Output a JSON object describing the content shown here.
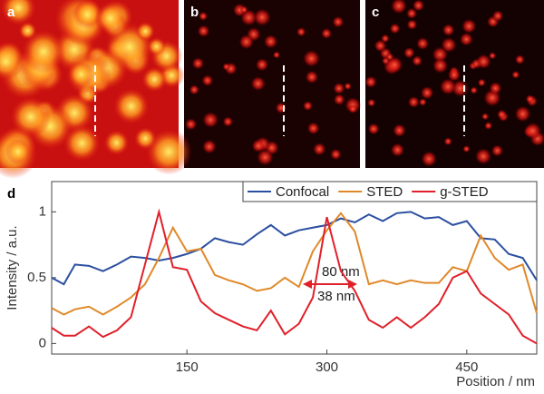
{
  "panels": [
    "a",
    "b",
    "c",
    "d"
  ],
  "chart_data": {
    "type": "line",
    "x": [
      5,
      18,
      30,
      45,
      60,
      75,
      90,
      105,
      120,
      135,
      150,
      165,
      180,
      195,
      210,
      225,
      240,
      255,
      270,
      285,
      300,
      315,
      330,
      345,
      360,
      375,
      390,
      405,
      420,
      435,
      450,
      465,
      480,
      495,
      510,
      525
    ],
    "series": [
      {
        "name": "Confocal",
        "color": "#2b4fa0",
        "values": [
          0.5,
          0.45,
          0.6,
          0.59,
          0.55,
          0.6,
          0.66,
          0.65,
          0.63,
          0.65,
          0.68,
          0.72,
          0.8,
          0.77,
          0.75,
          0.83,
          0.9,
          0.82,
          0.86,
          0.88,
          0.9,
          0.95,
          0.92,
          0.98,
          0.93,
          0.99,
          1.0,
          0.95,
          0.96,
          0.9,
          0.93,
          0.8,
          0.79,
          0.68,
          0.65,
          0.48
        ]
      },
      {
        "name": "STED",
        "color": "#e0892a",
        "values": [
          0.27,
          0.22,
          0.26,
          0.28,
          0.22,
          0.28,
          0.35,
          0.45,
          0.65,
          0.88,
          0.7,
          0.72,
          0.52,
          0.48,
          0.45,
          0.4,
          0.42,
          0.5,
          0.43,
          0.7,
          0.86,
          0.99,
          0.85,
          0.45,
          0.48,
          0.45,
          0.48,
          0.46,
          0.46,
          0.58,
          0.55,
          0.82,
          0.65,
          0.56,
          0.6,
          0.23
        ]
      },
      {
        "name": "g-STED",
        "color": "#e0202a",
        "values": [
          0.12,
          0.06,
          0.06,
          0.13,
          0.05,
          0.1,
          0.2,
          0.6,
          1.0,
          0.58,
          0.56,
          0.32,
          0.23,
          0.18,
          0.13,
          0.1,
          0.25,
          0.07,
          0.15,
          0.35,
          0.96,
          0.55,
          0.4,
          0.18,
          0.12,
          0.2,
          0.12,
          0.2,
          0.3,
          0.5,
          0.55,
          0.38,
          0.3,
          0.22,
          0.06,
          0.0
        ]
      }
    ],
    "xlim": [
      5,
      525
    ],
    "xticks": [
      150,
      300,
      450
    ],
    "ylim": [
      -0.08,
      1.23
    ],
    "yticks": [
      0,
      0.5,
      1
    ],
    "xlabel": "Position / nm",
    "ylabel": "Intensity / a.u.",
    "annotations": [
      "80 nm",
      "38 nm"
    ],
    "legend": "upper right"
  }
}
